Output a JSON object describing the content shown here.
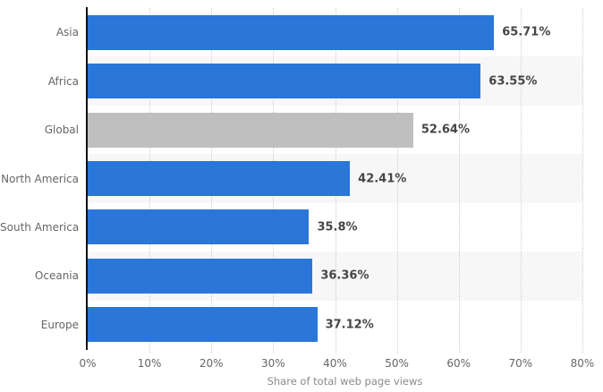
{
  "chart_data": {
    "type": "bar",
    "orientation": "horizontal",
    "title": "",
    "categories": [
      "Asia",
      "Africa",
      "Global",
      "North America",
      "South America",
      "Oceania",
      "Europe"
    ],
    "values": [
      65.71,
      63.55,
      52.64,
      42.41,
      35.8,
      36.36,
      37.12
    ],
    "value_labels": [
      "65.71%",
      "63.55%",
      "52.64%",
      "42.41%",
      "35.8%",
      "36.36%",
      "37.12%"
    ],
    "highlight_category": "Global",
    "xlabel": "Share of total web page views",
    "ylabel": "",
    "xlim": [
      0,
      80
    ],
    "x_tick_values": [
      0,
      10,
      20,
      30,
      40,
      50,
      60,
      70,
      80
    ],
    "x_tick_labels": [
      "0%",
      "10%",
      "20%",
      "30%",
      "40%",
      "50%",
      "60%",
      "70%",
      "80%"
    ],
    "grid": "vertical-dotted",
    "legend": null,
    "colors": {
      "bar_blue": "#2a76d9",
      "bar_gray": "#bfbfbf",
      "row_band": "#f7f7f7",
      "gridline": "#cccccc",
      "axis_line": "#111111",
      "category_text": "#666666",
      "tick_text": "#666666",
      "value_text": "#454545",
      "axis_title_text": "#8a8a8a"
    }
  }
}
